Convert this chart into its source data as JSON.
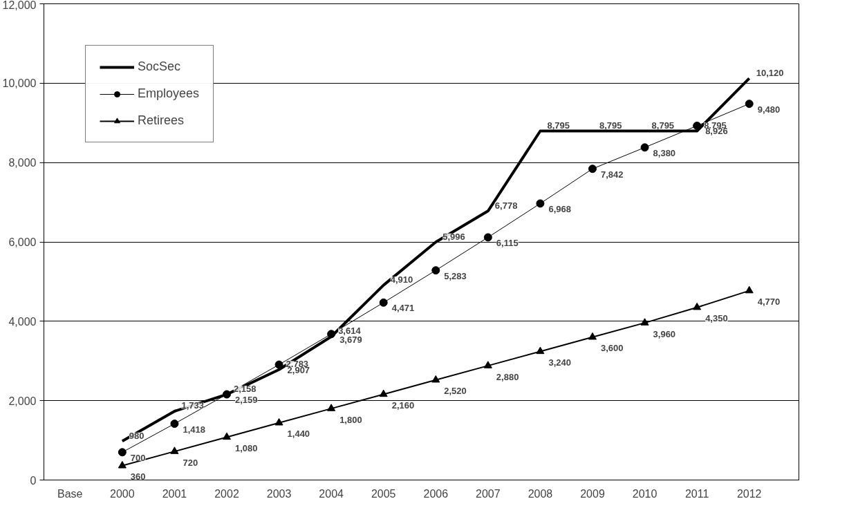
{
  "chart_data": {
    "type": "line",
    "categories": [
      "Base",
      "2000",
      "2001",
      "2002",
      "2003",
      "2004",
      "2005",
      "2006",
      "2007",
      "2008",
      "2009",
      "2010",
      "2011",
      "2012"
    ],
    "series": [
      {
        "name": "SocSec",
        "color": "#000000",
        "marker": "none",
        "values": [
          null,
          980,
          1733,
          2158,
          2783,
          3614,
          4910,
          5996,
          6778,
          8795,
          8795,
          8795,
          8795,
          10120
        ],
        "value_labels": [
          null,
          "980",
          "1,733",
          "2,158",
          "2,783",
          "3,614",
          "4,910",
          "5,996",
          "6,778",
          "8,795",
          "8,795",
          "8,795",
          "8,795",
          "10,120"
        ]
      },
      {
        "name": "Employees",
        "color": "#000000",
        "marker": "circle",
        "values": [
          null,
          700,
          1418,
          2159,
          2907,
          3679,
          4471,
          5283,
          6115,
          6968,
          7842,
          8380,
          8926,
          9480
        ],
        "value_labels": [
          null,
          "700",
          "1,418",
          "2,159",
          "2,907",
          "3,679",
          "4,471",
          "5,283",
          "6,115",
          "6,968",
          "7,842",
          "8,380",
          "8,926",
          "9,480"
        ]
      },
      {
        "name": "Retirees",
        "color": "#000000",
        "marker": "triangle",
        "values": [
          null,
          360,
          720,
          1080,
          1440,
          1800,
          2160,
          2520,
          2880,
          3240,
          3600,
          3960,
          4350,
          4770
        ],
        "value_labels": [
          null,
          "360",
          "720",
          "1,080",
          "1,440",
          "1,800",
          "2,160",
          "2,520",
          "2,880",
          "3,240",
          "3,600",
          "3,960",
          "4,350",
          "4,770"
        ]
      }
    ],
    "ylim": [
      0,
      12000
    ],
    "yticks": [
      {
        "value": 0,
        "label": "0"
      },
      {
        "value": 2000,
        "label": "2,000"
      },
      {
        "value": 4000,
        "label": "4,000"
      },
      {
        "value": 6000,
        "label": "6,000"
      },
      {
        "value": 8000,
        "label": "8,000"
      },
      {
        "value": 10000,
        "label": "10,000"
      },
      {
        "value": 12000,
        "label": "12,000"
      }
    ],
    "grid": "y",
    "legend": "top left"
  }
}
